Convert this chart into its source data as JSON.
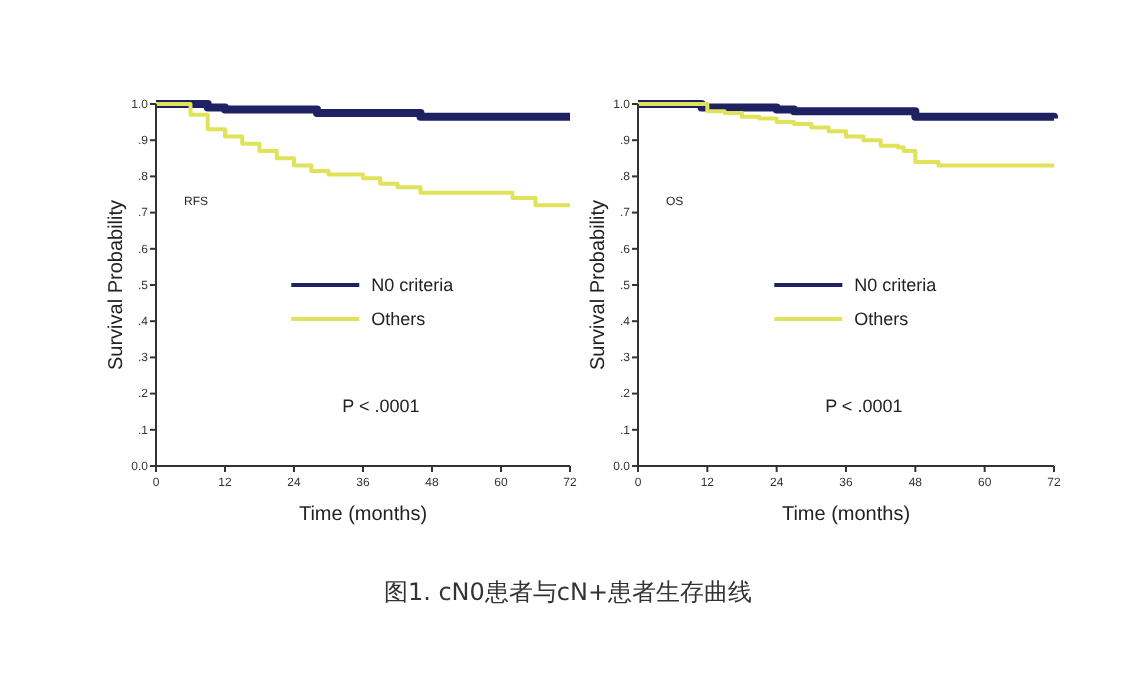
{
  "chart_data": [
    {
      "type": "step",
      "xlabel": "Time (months)",
      "ylabel": "Survival Probability",
      "xlim": [
        0,
        72
      ],
      "xticks": [
        0,
        12,
        24,
        36,
        48,
        60,
        72
      ],
      "ylim": [
        0,
        1
      ],
      "yticks": [
        {
          "value": 0,
          "label": "0.0"
        },
        {
          "value": 0.1,
          "label": ".1"
        },
        {
          "value": 0.2,
          "label": ".2"
        },
        {
          "value": 0.3,
          "label": ".3"
        },
        {
          "value": 0.4,
          "label": ".4"
        },
        {
          "value": 0.5,
          "label": ".5"
        },
        {
          "value": 0.6,
          "label": ".6"
        },
        {
          "value": 0.7,
          "label": ".7"
        },
        {
          "value": 0.8,
          "label": ".8"
        },
        {
          "value": 0.9,
          "label": ".9"
        },
        {
          "value": 1,
          "label": "1.0"
        }
      ],
      "legend": "right",
      "grid": false,
      "annotations": [
        "RFS",
        "P < .0001"
      ],
      "series": [
        {
          "name": "N0 criteria",
          "color": "#1f2163",
          "x": [
            0,
            4,
            9,
            12,
            28,
            46,
            72
          ],
          "values": [
            1,
            1,
            0.99,
            0.985,
            0.975,
            0.965,
            0.965
          ]
        },
        {
          "name": "Others",
          "color": "#e0e35a",
          "x": [
            0,
            4,
            6,
            9,
            12,
            15,
            18,
            21,
            24,
            27,
            30,
            36,
            39,
            42,
            46,
            60,
            62,
            66,
            72
          ],
          "values": [
            1,
            1,
            0.97,
            0.93,
            0.91,
            0.89,
            0.87,
            0.85,
            0.83,
            0.815,
            0.805,
            0.795,
            0.78,
            0.77,
            0.755,
            0.755,
            0.74,
            0.72,
            0.72
          ]
        }
      ]
    },
    {
      "type": "step",
      "xlabel": "Time (months)",
      "ylabel": "Survival Probability",
      "xlim": [
        0,
        72
      ],
      "xticks": [
        0,
        12,
        24,
        36,
        48,
        60,
        72
      ],
      "ylim": [
        0,
        1
      ],
      "yticks": [
        {
          "value": 0,
          "label": "0.0"
        },
        {
          "value": 0.1,
          "label": ".1"
        },
        {
          "value": 0.2,
          "label": ".2"
        },
        {
          "value": 0.3,
          "label": ".3"
        },
        {
          "value": 0.4,
          "label": ".4"
        },
        {
          "value": 0.5,
          "label": ".5"
        },
        {
          "value": 0.6,
          "label": ".6"
        },
        {
          "value": 0.7,
          "label": ".7"
        },
        {
          "value": 0.8,
          "label": ".8"
        },
        {
          "value": 0.9,
          "label": ".9"
        },
        {
          "value": 1,
          "label": "1.0"
        }
      ],
      "legend": "right",
      "grid": false,
      "annotations": [
        "OS",
        "P < .0001",
        "图1. cN0患者与cN+患者生存曲线"
      ],
      "series": [
        {
          "name": "N0 criteria",
          "color": "#1f2163",
          "x": [
            0,
            9,
            11,
            24,
            27,
            45,
            48,
            72
          ],
          "values": [
            1,
            1,
            0.99,
            0.985,
            0.98,
            0.98,
            0.965,
            0.96
          ]
        },
        {
          "name": "Others",
          "color": "#e0e35a",
          "x": [
            0,
            9,
            12,
            15,
            18,
            21,
            24,
            27,
            30,
            33,
            36,
            39,
            42,
            45,
            46,
            48,
            52,
            72
          ],
          "values": [
            1,
            1,
            0.98,
            0.975,
            0.965,
            0.96,
            0.95,
            0.945,
            0.935,
            0.925,
            0.91,
            0.9,
            0.885,
            0.88,
            0.87,
            0.84,
            0.83,
            0.83
          ]
        }
      ]
    }
  ]
}
